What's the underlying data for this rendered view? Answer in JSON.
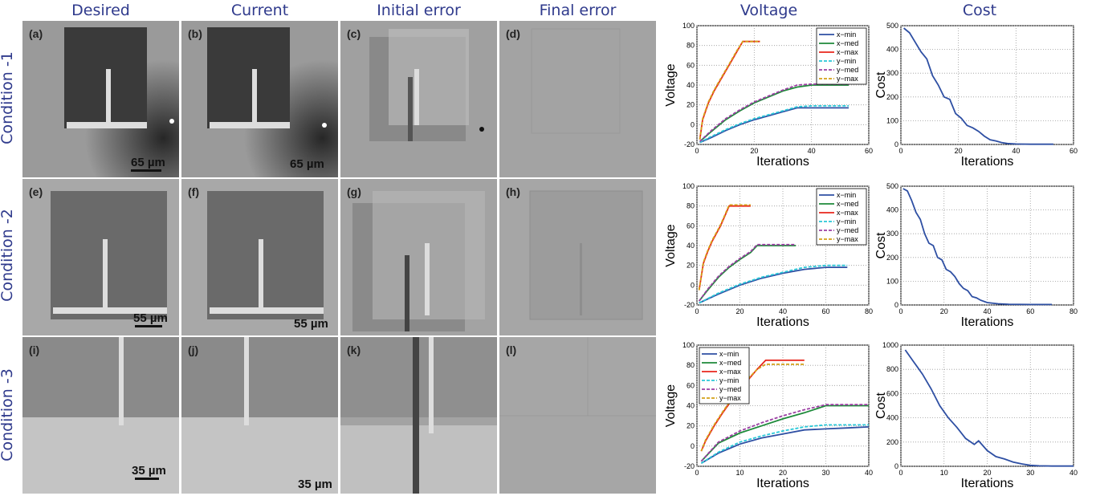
{
  "column_headers": [
    "Desired",
    "Current",
    "Initial error",
    "Final error",
    "Voltage",
    "Cost"
  ],
  "row_headers": [
    "Condition -1",
    "Condition -2",
    "Condition -3"
  ],
  "panels": [
    {
      "label": "(a)",
      "scale": "65 µm"
    },
    {
      "label": "(b)",
      "scale": "65 µm"
    },
    {
      "label": "(c)",
      "scale": ""
    },
    {
      "label": "(d)",
      "scale": ""
    },
    {
      "label": "(e)",
      "scale": ""
    },
    {
      "label": "(f)",
      "scale": ""
    },
    {
      "label": "(g)",
      "scale": ""
    },
    {
      "label": "(h)",
      "scale": ""
    },
    {
      "label": "(i)",
      "scale": "35 µm"
    },
    {
      "label": "(j)",
      "scale": "35 µm"
    },
    {
      "label": "(k)",
      "scale": ""
    },
    {
      "label": "(l)",
      "scale": ""
    }
  ],
  "scale_labels": {
    "row1": "65 µm",
    "row2": "55 µm",
    "row3": "35 µm"
  },
  "chart_data": [
    {
      "type": "line",
      "id": "voltage-1",
      "xlabel": "Iterations",
      "ylabel": "Voltage",
      "xlim": [
        0,
        60
      ],
      "ylim": [
        -20,
        100
      ],
      "xticks": [
        0,
        20,
        40,
        60
      ],
      "yticks": [
        -20,
        0,
        20,
        40,
        60,
        80,
        100
      ],
      "grid": true,
      "legend": "top-right",
      "series": [
        {
          "name": "x−min",
          "color": "#2e4fa3",
          "dash": false,
          "x": [
            1,
            5,
            10,
            15,
            20,
            25,
            30,
            35,
            40,
            45,
            50,
            53
          ],
          "y": [
            -18,
            -13,
            -6,
            0,
            5,
            9,
            13,
            17,
            17,
            17,
            17,
            17
          ]
        },
        {
          "name": "x−med",
          "color": "#1e8a3a",
          "dash": false,
          "x": [
            1,
            5,
            10,
            15,
            20,
            25,
            30,
            35,
            40,
            45,
            50,
            53
          ],
          "y": [
            -17,
            -7,
            5,
            14,
            22,
            28,
            34,
            38,
            40,
            40,
            40,
            40
          ]
        },
        {
          "name": "x−max",
          "color": "#e8261c",
          "dash": false,
          "x": [
            1,
            2,
            4,
            6,
            8,
            10,
            12,
            14,
            16,
            18,
            20,
            22
          ],
          "y": [
            -15,
            5,
            22,
            34,
            44,
            54,
            64,
            74,
            84,
            84,
            84,
            84
          ]
        },
        {
          "name": "y−min",
          "color": "#29c8d8",
          "dash": true,
          "x": [
            1,
            5,
            10,
            15,
            20,
            25,
            30,
            35,
            40,
            45,
            50,
            53
          ],
          "y": [
            -18,
            -12,
            -5,
            1,
            6,
            10,
            14,
            18,
            19,
            19,
            19,
            19
          ]
        },
        {
          "name": "y−med",
          "color": "#9b3fa3",
          "dash": true,
          "x": [
            1,
            5,
            10,
            15,
            20,
            25,
            30,
            35,
            40,
            45,
            50,
            53
          ],
          "y": [
            -17,
            -6,
            6,
            15,
            23,
            29,
            35,
            40,
            41,
            41,
            41,
            41
          ]
        },
        {
          "name": "y−max",
          "color": "#d4a017",
          "dash": true,
          "x": [
            1,
            2,
            4,
            6,
            8,
            10,
            12,
            14,
            16,
            18,
            20,
            22
          ],
          "y": [
            -15,
            6,
            23,
            35,
            45,
            55,
            65,
            75,
            84,
            84,
            84,
            84
          ]
        }
      ]
    },
    {
      "type": "line",
      "id": "cost-1",
      "xlabel": "Iterations",
      "ylabel": "Cost",
      "xlim": [
        0,
        60
      ],
      "ylim": [
        0,
        500
      ],
      "xticks": [
        0,
        20,
        40,
        60
      ],
      "yticks": [
        0,
        100,
        200,
        300,
        400,
        500
      ],
      "grid": true,
      "series": [
        {
          "color": "#2e4fa3",
          "dash": false,
          "x": [
            1,
            3,
            5,
            7,
            9,
            11,
            13,
            15,
            17,
            19,
            21,
            23,
            25,
            27,
            29,
            31,
            33,
            35,
            37,
            40,
            45,
            50,
            53
          ],
          "y": [
            490,
            470,
            430,
            390,
            360,
            290,
            250,
            200,
            190,
            130,
            110,
            80,
            70,
            55,
            35,
            20,
            15,
            8,
            4,
            2,
            1,
            1,
            1
          ]
        }
      ]
    },
    {
      "type": "line",
      "id": "voltage-2",
      "xlabel": "Iterations",
      "ylabel": "Voltage",
      "xlim": [
        0,
        80
      ],
      "ylim": [
        -20,
        100
      ],
      "xticks": [
        0,
        20,
        40,
        60,
        80
      ],
      "yticks": [
        -20,
        0,
        20,
        40,
        60,
        80,
        100
      ],
      "grid": true,
      "legend": "top-right",
      "series": [
        {
          "name": "x−min",
          "color": "#2e4fa3",
          "dash": false,
          "x": [
            1,
            10,
            20,
            30,
            40,
            50,
            60,
            70
          ],
          "y": [
            -18,
            -9,
            0,
            7,
            12,
            16,
            18,
            18
          ]
        },
        {
          "name": "x−med",
          "color": "#1e8a3a",
          "dash": false,
          "x": [
            1,
            5,
            10,
            15,
            20,
            25,
            28,
            35,
            40,
            46
          ],
          "y": [
            -16,
            -5,
            8,
            18,
            26,
            33,
            40,
            40,
            40,
            40
          ]
        },
        {
          "name": "x−max",
          "color": "#e8261c",
          "dash": false,
          "x": [
            1,
            3,
            5,
            7,
            9,
            11,
            13,
            15,
            20,
            25
          ],
          "y": [
            -5,
            22,
            34,
            44,
            52,
            60,
            70,
            80,
            80,
            80
          ]
        },
        {
          "name": "y−min",
          "color": "#29c8d8",
          "dash": true,
          "x": [
            1,
            10,
            20,
            30,
            40,
            50,
            60,
            70
          ],
          "y": [
            -18,
            -8,
            1,
            8,
            13,
            18,
            20,
            20
          ]
        },
        {
          "name": "y−med",
          "color": "#9b3fa3",
          "dash": true,
          "x": [
            1,
            5,
            10,
            15,
            20,
            25,
            28,
            35,
            40,
            46
          ],
          "y": [
            -16,
            -4,
            9,
            19,
            27,
            34,
            41,
            41,
            41,
            41
          ]
        },
        {
          "name": "y−max",
          "color": "#d4a017",
          "dash": true,
          "x": [
            1,
            3,
            5,
            7,
            9,
            11,
            13,
            15,
            20,
            25
          ],
          "y": [
            -5,
            23,
            35,
            45,
            53,
            61,
            71,
            81,
            81,
            81
          ]
        }
      ]
    },
    {
      "type": "line",
      "id": "cost-2",
      "xlabel": "Iterations",
      "ylabel": "Cost",
      "xlim": [
        0,
        80
      ],
      "ylim": [
        0,
        500
      ],
      "xticks": [
        0,
        20,
        40,
        60,
        80
      ],
      "yticks": [
        0,
        100,
        200,
        300,
        400,
        500
      ],
      "grid": true,
      "series": [
        {
          "color": "#2e4fa3",
          "dash": false,
          "x": [
            1,
            3,
            5,
            7,
            9,
            11,
            13,
            15,
            17,
            19,
            21,
            23,
            25,
            27,
            29,
            31,
            33,
            35,
            37,
            40,
            45,
            50,
            60,
            70
          ],
          "y": [
            490,
            480,
            440,
            390,
            360,
            300,
            260,
            250,
            200,
            190,
            150,
            140,
            120,
            90,
            70,
            60,
            35,
            30,
            20,
            10,
            5,
            3,
            2,
            2
          ]
        }
      ]
    },
    {
      "type": "line",
      "id": "voltage-3",
      "xlabel": "Iterations",
      "ylabel": "Voltage",
      "xlim": [
        0,
        40
      ],
      "ylim": [
        -20,
        100
      ],
      "xticks": [
        0,
        10,
        20,
        30,
        40
      ],
      "yticks": [
        -20,
        0,
        20,
        40,
        60,
        80,
        100
      ],
      "grid": true,
      "legend": "top-left",
      "series": [
        {
          "name": "x−min",
          "color": "#2e4fa3",
          "dash": false,
          "x": [
            1,
            5,
            10,
            15,
            20,
            25,
            30,
            35,
            40
          ],
          "y": [
            -17,
            -7,
            2,
            8,
            12,
            16,
            17,
            18,
            19
          ]
        },
        {
          "name": "x−med",
          "color": "#1e8a3a",
          "dash": false,
          "x": [
            1,
            5,
            10,
            15,
            20,
            25,
            30,
            35,
            40
          ],
          "y": [
            -15,
            3,
            13,
            20,
            27,
            33,
            40,
            40,
            40
          ]
        },
        {
          "name": "x−max",
          "color": "#e8261c",
          "dash": false,
          "x": [
            1,
            2,
            4,
            6,
            8,
            10,
            12,
            14,
            16,
            20,
            25
          ],
          "y": [
            -5,
            5,
            20,
            33,
            45,
            56,
            66,
            76,
            85,
            85,
            85
          ]
        },
        {
          "name": "y−min",
          "color": "#29c8d8",
          "dash": true,
          "x": [
            1,
            5,
            10,
            15,
            20,
            25,
            30,
            35,
            40
          ],
          "y": [
            -17,
            -6,
            4,
            10,
            15,
            19,
            21,
            21,
            21
          ]
        },
        {
          "name": "y−med",
          "color": "#9b3fa3",
          "dash": true,
          "x": [
            1,
            5,
            10,
            15,
            20,
            25,
            30,
            35,
            40
          ],
          "y": [
            -15,
            4,
            15,
            23,
            30,
            36,
            41,
            41,
            41
          ]
        },
        {
          "name": "y−max",
          "color": "#d4a017",
          "dash": true,
          "x": [
            1,
            2,
            4,
            6,
            8,
            10,
            12,
            14,
            16,
            20,
            25
          ],
          "y": [
            -5,
            6,
            21,
            34,
            46,
            57,
            67,
            76,
            81,
            81,
            81
          ]
        }
      ]
    },
    {
      "type": "line",
      "id": "cost-3",
      "xlabel": "Iterations",
      "ylabel": "Cost",
      "xlim": [
        0,
        40
      ],
      "ylim": [
        0,
        1000
      ],
      "xticks": [
        0,
        10,
        20,
        30,
        40
      ],
      "yticks": [
        0,
        200,
        400,
        600,
        800,
        1000
      ],
      "grid": true,
      "series": [
        {
          "color": "#2e4fa3",
          "dash": false,
          "x": [
            1,
            3,
            5,
            7,
            9,
            11,
            13,
            15,
            17,
            18,
            20,
            22,
            24,
            26,
            28,
            30,
            32,
            35,
            38,
            40
          ],
          "y": [
            960,
            860,
            760,
            640,
            500,
            400,
            320,
            230,
            180,
            210,
            130,
            80,
            60,
            35,
            20,
            8,
            4,
            2,
            2,
            2
          ]
        }
      ]
    }
  ]
}
